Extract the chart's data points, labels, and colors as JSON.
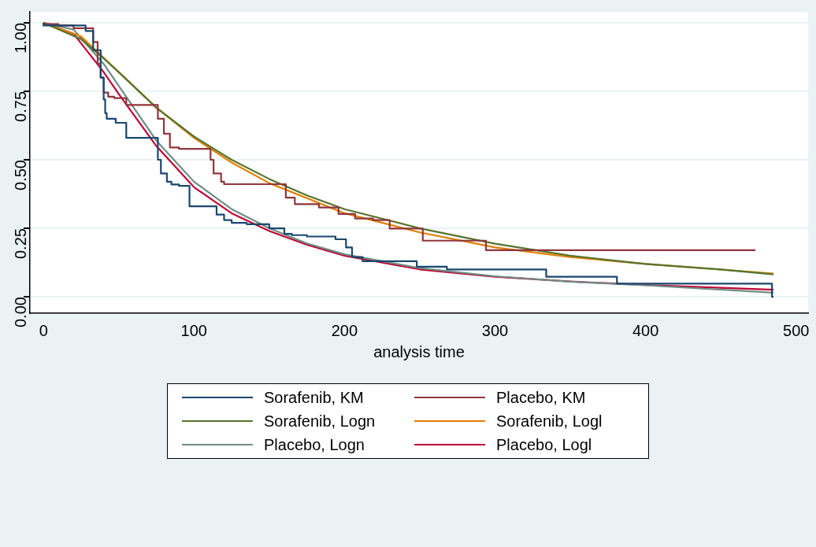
{
  "chart_data": {
    "type": "line",
    "xlabel": "analysis time",
    "xlim": [
      -9,
      508
    ],
    "xticks": [
      0,
      100,
      200,
      300,
      400,
      500
    ],
    "ylim": [
      -0.06,
      1.04
    ],
    "yticks": [
      {
        "value": 0,
        "label": "0.00"
      },
      {
        "value": 0.25,
        "label": "0.25"
      },
      {
        "value": 0.5,
        "label": "0.50"
      },
      {
        "value": 0.75,
        "label": "0.75"
      },
      {
        "value": 1,
        "label": "1.00"
      }
    ],
    "grid": "y",
    "legend": "bottom",
    "marker": "none",
    "line_style": "solid",
    "series": [
      {
        "name": "Sorafenib, KM",
        "type": "step",
        "color": "#1a476f",
        "x": [
          0,
          28,
          33,
          38,
          40,
          41,
          42,
          48,
          55,
          76,
          78,
          82,
          85,
          90,
          97,
          115,
          120,
          125,
          135,
          150,
          160,
          165,
          175,
          194,
          201,
          205,
          212,
          248,
          268,
          334,
          381,
          390,
          484,
          485
        ],
        "values": [
          1.0,
          0.99,
          0.97,
          0.9,
          0.8,
          0.72,
          0.67,
          0.65,
          0.635,
          0.58,
          0.5,
          0.45,
          0.42,
          0.41,
          0.405,
          0.33,
          0.3,
          0.28,
          0.27,
          0.265,
          0.25,
          0.23,
          0.225,
          0.22,
          0.21,
          0.18,
          0.145,
          0.13,
          0.11,
          0.1,
          0.073,
          0.048,
          0.048,
          0.0
        ]
      },
      {
        "name": "Placebo, KM",
        "type": "step",
        "color": "#90353b",
        "x": [
          0,
          10,
          20,
          33,
          36,
          38,
          40,
          43,
          47,
          55,
          76,
          80,
          84,
          90,
          111,
          113,
          118,
          120,
          161,
          167,
          183,
          196,
          207,
          219,
          230,
          252,
          294,
          338,
          473
        ],
        "values": [
          1.0,
          0.995,
          0.99,
          0.98,
          0.93,
          0.85,
          0.8,
          0.745,
          0.73,
          0.725,
          0.7,
          0.65,
          0.595,
          0.545,
          0.54,
          0.5,
          0.45,
          0.42,
          0.411,
          0.362,
          0.338,
          0.326,
          0.302,
          0.286,
          0.28,
          0.249,
          0.205,
          0.17,
          0.17
        ]
      },
      {
        "name": "Sorafenib, Logn",
        "color": "#55752f",
        "x": [
          0,
          25,
          40,
          50,
          75,
          100,
          125,
          150,
          175,
          200,
          250,
          300,
          350,
          400,
          450,
          485
        ],
        "values": [
          1.0,
          0.94,
          0.87,
          0.82,
          0.69,
          0.585,
          0.5,
          0.43,
          0.37,
          0.32,
          0.25,
          0.194,
          0.15,
          0.12,
          0.1,
          0.082
        ]
      },
      {
        "name": "Sorafenib, Logl",
        "color": "#e37e00",
        "x": [
          0,
          25,
          50,
          75,
          100,
          125,
          150,
          200,
          250,
          300,
          350,
          400,
          485
        ],
        "values": [
          1.0,
          0.95,
          0.82,
          0.69,
          0.58,
          0.49,
          0.415,
          0.305,
          0.235,
          0.18,
          0.145,
          0.12,
          0.085
        ]
      },
      {
        "name": "Placebo, Logn",
        "color": "#6e8e84",
        "x": [
          0,
          20,
          40,
          50,
          75,
          100,
          125,
          150,
          175,
          200,
          250,
          300,
          350,
          400,
          485
        ],
        "values": [
          1.0,
          0.975,
          0.85,
          0.77,
          0.57,
          0.42,
          0.32,
          0.25,
          0.195,
          0.155,
          0.105,
          0.075,
          0.055,
          0.042,
          0.015
        ]
      },
      {
        "name": "Placebo, Logl",
        "color": "#c10534",
        "x": [
          0,
          20,
          40,
          50,
          75,
          100,
          125,
          150,
          175,
          200,
          250,
          300,
          350,
          400,
          485
        ],
        "values": [
          1.0,
          0.96,
          0.82,
          0.74,
          0.55,
          0.4,
          0.305,
          0.24,
          0.19,
          0.15,
          0.1,
          0.073,
          0.056,
          0.043,
          0.026
        ]
      }
    ]
  }
}
